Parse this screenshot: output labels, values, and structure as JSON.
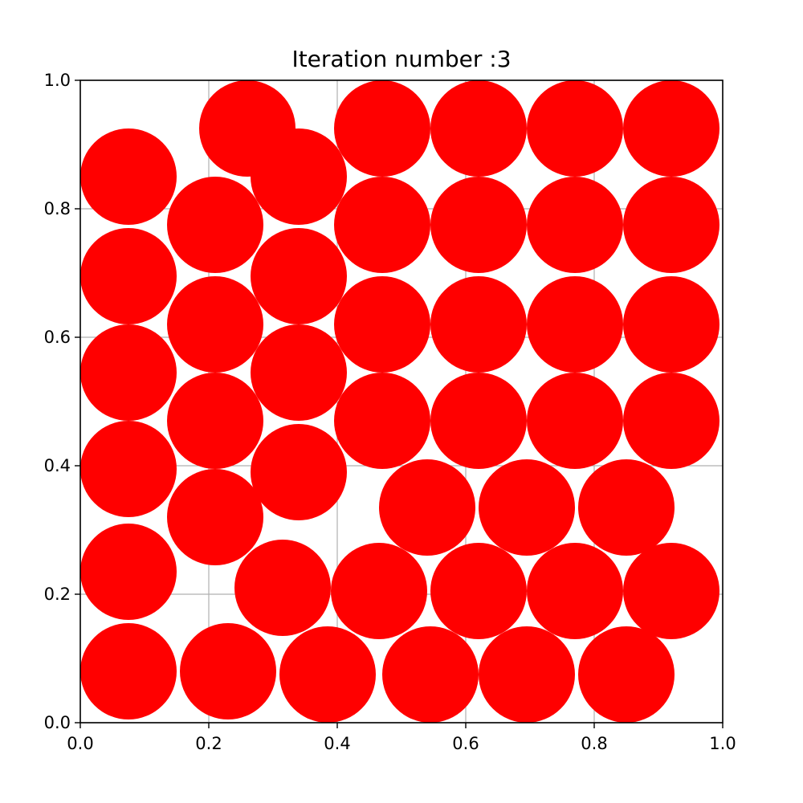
{
  "chart_data": {
    "type": "scatter",
    "title": "Iteration number :3",
    "xlabel": "",
    "ylabel": "",
    "xlim": [
      0.0,
      1.0
    ],
    "ylim": [
      0.0,
      1.0
    ],
    "grid": true,
    "marker_color": "#ff0000",
    "marker_shape": "circle",
    "marker_radius_data": 0.075,
    "x_ticks": [
      "0.0",
      "0.2",
      "0.4",
      "0.6",
      "0.8",
      "1.0"
    ],
    "y_ticks": [
      "0.0",
      "0.2",
      "0.4",
      "0.6",
      "0.8",
      "1.0"
    ],
    "points": [
      {
        "x": 0.26,
        "y": 0.925
      },
      {
        "x": 0.47,
        "y": 0.925
      },
      {
        "x": 0.62,
        "y": 0.925
      },
      {
        "x": 0.77,
        "y": 0.925
      },
      {
        "x": 0.92,
        "y": 0.925
      },
      {
        "x": 0.075,
        "y": 0.85
      },
      {
        "x": 0.34,
        "y": 0.85
      },
      {
        "x": 0.21,
        "y": 0.775
      },
      {
        "x": 0.47,
        "y": 0.775
      },
      {
        "x": 0.62,
        "y": 0.775
      },
      {
        "x": 0.77,
        "y": 0.775
      },
      {
        "x": 0.92,
        "y": 0.775
      },
      {
        "x": 0.075,
        "y": 0.695
      },
      {
        "x": 0.34,
        "y": 0.695
      },
      {
        "x": 0.21,
        "y": 0.62
      },
      {
        "x": 0.47,
        "y": 0.62
      },
      {
        "x": 0.62,
        "y": 0.62
      },
      {
        "x": 0.77,
        "y": 0.62
      },
      {
        "x": 0.92,
        "y": 0.62
      },
      {
        "x": 0.075,
        "y": 0.545
      },
      {
        "x": 0.34,
        "y": 0.545
      },
      {
        "x": 0.21,
        "y": 0.47
      },
      {
        "x": 0.47,
        "y": 0.47
      },
      {
        "x": 0.62,
        "y": 0.47
      },
      {
        "x": 0.77,
        "y": 0.47
      },
      {
        "x": 0.92,
        "y": 0.47
      },
      {
        "x": 0.075,
        "y": 0.395
      },
      {
        "x": 0.34,
        "y": 0.39
      },
      {
        "x": 0.54,
        "y": 0.335
      },
      {
        "x": 0.695,
        "y": 0.335
      },
      {
        "x": 0.85,
        "y": 0.335
      },
      {
        "x": 0.21,
        "y": 0.32
      },
      {
        "x": 0.075,
        "y": 0.235
      },
      {
        "x": 0.315,
        "y": 0.21
      },
      {
        "x": 0.465,
        "y": 0.205
      },
      {
        "x": 0.62,
        "y": 0.205
      },
      {
        "x": 0.77,
        "y": 0.205
      },
      {
        "x": 0.92,
        "y": 0.205
      },
      {
        "x": 0.075,
        "y": 0.08
      },
      {
        "x": 0.23,
        "y": 0.08
      },
      {
        "x": 0.385,
        "y": 0.075
      },
      {
        "x": 0.545,
        "y": 0.075
      },
      {
        "x": 0.695,
        "y": 0.075
      },
      {
        "x": 0.85,
        "y": 0.075
      }
    ]
  }
}
